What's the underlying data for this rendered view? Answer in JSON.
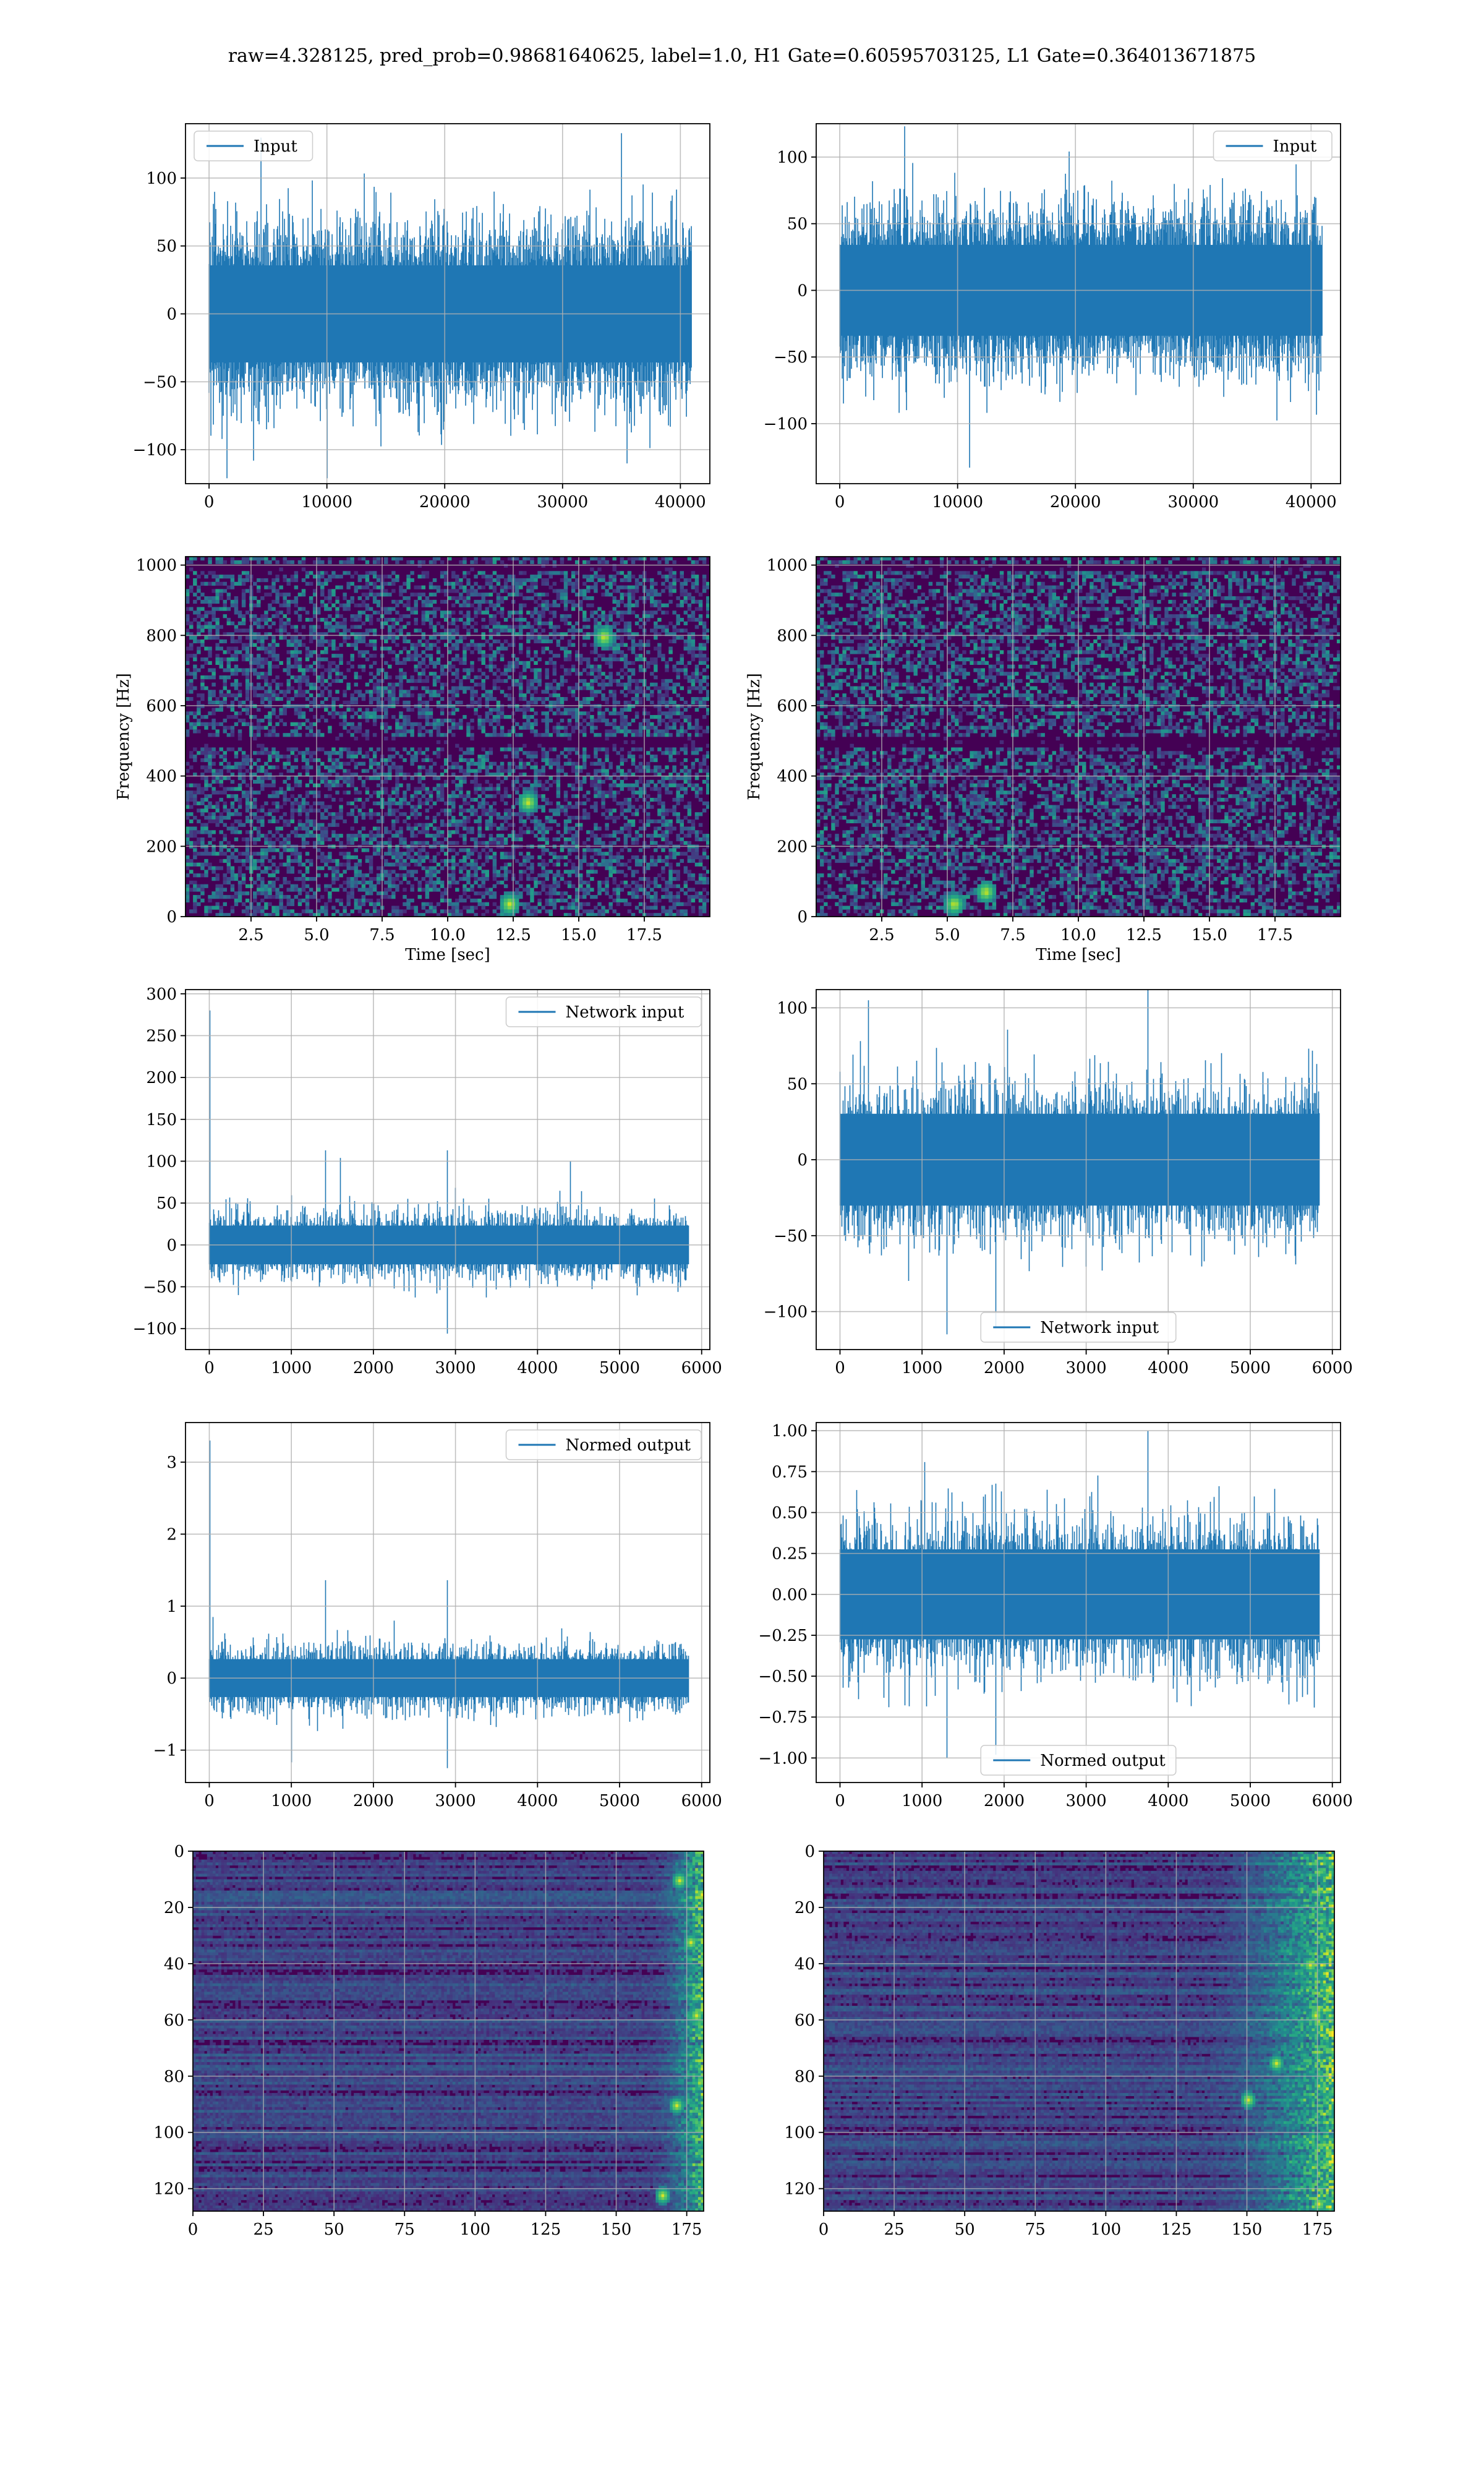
{
  "suptitle": "raw=4.328125, pred_prob=0.98681640625, label=1.0, H1 Gate=0.60595703125, L1 Gate=0.364013671875",
  "colors": {
    "series": "#1f77b4",
    "grid": "#b0b0b0",
    "frame": "#000000",
    "viridis_dark": "#440154",
    "viridis_mid": "#21918c",
    "viridis_bright": "#fde725"
  },
  "chart_data": [
    {
      "id": "input-h1",
      "type": "line",
      "series": [
        {
          "name": "Input"
        }
      ],
      "legend": "upper left",
      "xlim": [
        -2000,
        42500
      ],
      "ylim": [
        -125,
        140
      ],
      "xticks": [
        0,
        10000,
        20000,
        30000,
        40000
      ],
      "xtick_labels": [
        "0",
        "10000",
        "20000",
        "30000",
        "40000"
      ],
      "yticks": [
        -100,
        -50,
        0,
        50,
        100
      ],
      "ytick_labels": [
        "−100",
        "−50",
        "0",
        "50",
        "100"
      ],
      "signal": {
        "n": 40960,
        "amp": 65,
        "spikes": [
          [
            35000,
            133
          ],
          [
            1500,
            -121
          ],
          [
            10000,
            -121
          ]
        ],
        "start": 0,
        "end": 40960
      },
      "grid": true
    },
    {
      "id": "input-l1",
      "type": "line",
      "series": [
        {
          "name": "Input"
        }
      ],
      "legend": "upper right",
      "xlim": [
        -2000,
        42500
      ],
      "ylim": [
        -145,
        125
      ],
      "xticks": [
        0,
        10000,
        20000,
        30000,
        40000
      ],
      "xtick_labels": [
        "0",
        "10000",
        "20000",
        "30000",
        "40000"
      ],
      "yticks": [
        -100,
        -50,
        0,
        50,
        100
      ],
      "ytick_labels": [
        "−100",
        "−50",
        "0",
        "50",
        "100"
      ],
      "signal": {
        "n": 40960,
        "amp": 62,
        "spikes": [
          [
            5500,
            123
          ],
          [
            11000,
            -133
          ]
        ],
        "start": 0,
        "end": 40960
      },
      "grid": true
    },
    {
      "id": "spec-h1",
      "type": "heatmap",
      "xlabel": "Time [sec]",
      "ylabel": "Frequency [Hz]",
      "xlim": [
        0,
        20
      ],
      "ylim": [
        0,
        1024
      ],
      "xticks": [
        2.5,
        5.0,
        7.5,
        10.0,
        12.5,
        15.0,
        17.5
      ],
      "xtick_labels": [
        "2.5",
        "5.0",
        "7.5",
        "10.0",
        "12.5",
        "15.0",
        "17.5"
      ],
      "yticks": [
        0,
        200,
        400,
        600,
        800,
        1000
      ],
      "ytick_labels": [
        "0",
        "200",
        "400",
        "600",
        "800",
        "1000"
      ],
      "hotspots": [
        [
          12.3,
          40
        ],
        [
          15.9,
          800
        ],
        [
          13.0,
          330
        ]
      ],
      "dark_bands": [
        500,
        1000
      ],
      "grid": true
    },
    {
      "id": "spec-l1",
      "type": "heatmap",
      "xlabel": "Time [sec]",
      "ylabel": "Frequency [Hz]",
      "xlim": [
        0,
        20
      ],
      "ylim": [
        0,
        1024
      ],
      "xticks": [
        2.5,
        5.0,
        7.5,
        10.0,
        12.5,
        15.0,
        17.5
      ],
      "xtick_labels": [
        "2.5",
        "5.0",
        "7.5",
        "10.0",
        "12.5",
        "15.0",
        "17.5"
      ],
      "yticks": [
        0,
        200,
        400,
        600,
        800,
        1000
      ],
      "ytick_labels": [
        "0",
        "200",
        "400",
        "600",
        "800",
        "1000"
      ],
      "hotspots": [
        [
          6.4,
          75
        ],
        [
          5.2,
          40
        ]
      ],
      "dark_bands": [
        500,
        1000
      ],
      "grid": true
    },
    {
      "id": "network-input-h1",
      "type": "line",
      "series": [
        {
          "name": "Network input"
        }
      ],
      "legend": "upper right",
      "xlim": [
        -290,
        6100
      ],
      "ylim": [
        -125,
        305
      ],
      "xticks": [
        0,
        1000,
        2000,
        3000,
        4000,
        5000,
        6000
      ],
      "xtick_labels": [
        "0",
        "1000",
        "2000",
        "3000",
        "4000",
        "5000",
        "6000"
      ],
      "yticks": [
        -100,
        -50,
        0,
        50,
        100,
        150,
        200,
        250,
        300
      ],
      "ytick_labels": [
        "−100",
        "−50",
        "0",
        "50",
        "100",
        "150",
        "200",
        "250",
        "300"
      ],
      "signal": {
        "n": 5800,
        "amp": 42,
        "spikes": [
          [
            8,
            280
          ],
          [
            1420,
            113
          ],
          [
            1600,
            104
          ],
          [
            2900,
            113
          ],
          [
            4400,
            100
          ],
          [
            2900,
            -106
          ]
        ],
        "start": 0,
        "end": 5850
      },
      "grid": true
    },
    {
      "id": "network-input-l1",
      "type": "line",
      "series": [
        {
          "name": "Network input"
        }
      ],
      "legend": "lower center",
      "xlim": [
        -290,
        6100
      ],
      "ylim": [
        -125,
        112
      ],
      "xticks": [
        0,
        1000,
        2000,
        3000,
        4000,
        5000,
        6000
      ],
      "xtick_labels": [
        "0",
        "1000",
        "2000",
        "3000",
        "4000",
        "5000",
        "6000"
      ],
      "yticks": [
        -100,
        -50,
        0,
        50,
        100
      ],
      "ytick_labels": [
        "−100",
        "−50",
        "0",
        "50",
        "100"
      ],
      "signal": {
        "n": 5800,
        "amp": 55,
        "spikes": [
          [
            3750,
            114
          ],
          [
            350,
            105
          ],
          [
            1300,
            -115
          ],
          [
            1900,
            -111
          ]
        ],
        "start": 0,
        "end": 5850
      },
      "grid": true
    },
    {
      "id": "normed-output-h1",
      "type": "line",
      "series": [
        {
          "name": "Normed output"
        }
      ],
      "legend": "upper right",
      "xlim": [
        -290,
        6100
      ],
      "ylim": [
        -1.45,
        3.55
      ],
      "xticks": [
        0,
        1000,
        2000,
        3000,
        4000,
        5000,
        6000
      ],
      "xtick_labels": [
        "0",
        "1000",
        "2000",
        "3000",
        "4000",
        "5000",
        "6000"
      ],
      "yticks": [
        -1,
        0,
        1,
        2,
        3
      ],
      "ytick_labels": [
        "−1",
        "0",
        "1",
        "2",
        "3"
      ],
      "signal": {
        "n": 5800,
        "amp": 0.48,
        "spikes": [
          [
            8,
            3.3
          ],
          [
            1420,
            1.36
          ],
          [
            2900,
            1.36
          ],
          [
            2900,
            -1.25
          ],
          [
            1000,
            -1.17
          ]
        ],
        "start": 0,
        "end": 5850
      },
      "grid": true
    },
    {
      "id": "normed-output-l1",
      "type": "line",
      "series": [
        {
          "name": "Normed output"
        }
      ],
      "legend": "lower center",
      "xlim": [
        -290,
        6100
      ],
      "ylim": [
        -1.15,
        1.05
      ],
      "xticks": [
        0,
        1000,
        2000,
        3000,
        4000,
        5000,
        6000
      ],
      "xtick_labels": [
        "0",
        "1000",
        "2000",
        "3000",
        "4000",
        "5000",
        "6000"
      ],
      "yticks": [
        -1.0,
        -0.75,
        -0.5,
        -0.25,
        0.0,
        0.25,
        0.5,
        0.75,
        1.0
      ],
      "ytick_labels": [
        "−1.00",
        "−0.75",
        "−0.50",
        "−0.25",
        "0.00",
        "0.25",
        "0.50",
        "0.75",
        "1.00"
      ],
      "signal": {
        "n": 5800,
        "amp": 0.5,
        "spikes": [
          [
            3750,
            1.0
          ],
          [
            1300,
            -1.0
          ],
          [
            1900,
            -0.98
          ]
        ],
        "start": 0,
        "end": 5850
      },
      "grid": true
    },
    {
      "id": "feature-map-h1",
      "type": "heatmap",
      "xlim": [
        0,
        181
      ],
      "ylim": [
        128,
        0
      ],
      "xticks": [
        0,
        25,
        50,
        75,
        100,
        125,
        150,
        175
      ],
      "xtick_labels": [
        "0",
        "25",
        "50",
        "75",
        "100",
        "125",
        "150",
        "175"
      ],
      "yticks": [
        0,
        20,
        40,
        60,
        80,
        100,
        120
      ],
      "ytick_labels": [
        "0",
        "20",
        "40",
        "60",
        "80",
        "100",
        "120"
      ],
      "hot_cols": [
        160,
        181
      ],
      "hotspots": [
        [
          172,
          10
        ],
        [
          176,
          32
        ],
        [
          178,
          58
        ],
        [
          171,
          90
        ],
        [
          166,
          122
        ]
      ],
      "grid": true
    },
    {
      "id": "feature-map-l1",
      "type": "heatmap",
      "xlim": [
        0,
        181
      ],
      "ylim": [
        128,
        0
      ],
      "xticks": [
        0,
        25,
        50,
        75,
        100,
        125,
        150,
        175
      ],
      "xtick_labels": [
        "0",
        "25",
        "50",
        "75",
        "100",
        "125",
        "150",
        "175"
      ],
      "yticks": [
        0,
        20,
        40,
        60,
        80,
        100,
        120
      ],
      "ytick_labels": [
        "0",
        "20",
        "40",
        "60",
        "80",
        "100",
        "120"
      ],
      "hot_cols": [
        130,
        181
      ],
      "hotspots": [
        [
          172,
          40
        ],
        [
          174,
          58
        ],
        [
          160,
          75
        ],
        [
          150,
          88
        ],
        [
          175,
          125
        ]
      ],
      "grid": true
    }
  ]
}
